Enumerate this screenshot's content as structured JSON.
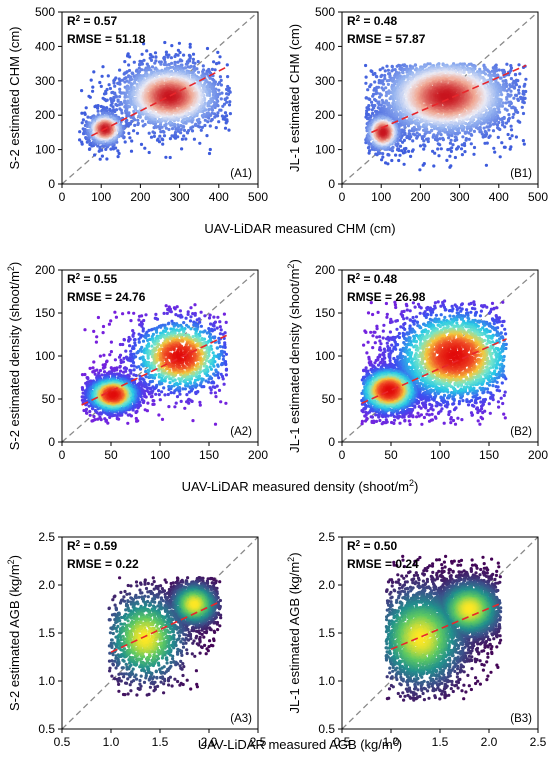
{
  "chart_data": [
    {
      "type": "scatter",
      "panel": "(A1)",
      "xlabel": "",
      "ylabel": "S-2 estimated CHM (cm)",
      "xlim": [
        0,
        500
      ],
      "ylim": [
        0,
        500
      ],
      "xticks": [
        0,
        100,
        200,
        300,
        400,
        500
      ],
      "yticks": [
        0,
        100,
        200,
        300,
        400,
        500
      ],
      "stats": {
        "r2_prefix": "R",
        "r2_sup": "2",
        "r2_value": " = 0.57",
        "rmse": "RMSE = 51.18"
      },
      "fit": {
        "x": [
          75,
          420
        ],
        "y": [
          140,
          340
        ]
      },
      "cloud": {
        "clusters": [
          {
            "x": 110,
            "y": 160,
            "sx": 22,
            "sy": 22,
            "n": 700
          },
          {
            "x": 275,
            "y": 255,
            "sx": 60,
            "sy": 45,
            "n": 2300
          }
        ],
        "xmin": 40,
        "xmax": 430,
        "ymin": 40,
        "ymax": 420
      },
      "palette": "coolwarm",
      "grid": false
    },
    {
      "type": "scatter",
      "panel": "(B1)",
      "xlabel": "",
      "ylabel": "JL-1 estimated CHM (cm)",
      "xlim": [
        0,
        500
      ],
      "ylim": [
        0,
        500
      ],
      "xticks": [
        0,
        100,
        200,
        300,
        400,
        500
      ],
      "yticks": [
        0,
        100,
        200,
        300,
        400,
        500
      ],
      "stats": {
        "r2_prefix": "R",
        "r2_sup": "2",
        "r2_value": " = 0.48",
        "rmse": "RMSE = 57.87"
      },
      "fit": {
        "x": [
          75,
          470
        ],
        "y": [
          150,
          345
        ]
      },
      "cloud": {
        "clusters": [
          {
            "x": 105,
            "y": 150,
            "sx": 20,
            "sy": 25,
            "n": 900
          },
          {
            "x": 265,
            "y": 255,
            "sx": 80,
            "sy": 55,
            "n": 3600
          }
        ],
        "xmin": 60,
        "xmax": 470,
        "ymin": 40,
        "ymax": 350
      },
      "palette": "coolwarm",
      "grid": false
    },
    {
      "type": "scatter",
      "panel": "(A2)",
      "xlabel": "",
      "ylabel": "S-2 estimated density (shoot/m²)",
      "xlim": [
        0,
        200
      ],
      "ylim": [
        0,
        200
      ],
      "xticks": [
        0,
        50,
        100,
        150,
        200
      ],
      "yticks": [
        0,
        50,
        100,
        150,
        200
      ],
      "stats": {
        "r2_prefix": "R",
        "r2_sup": "2",
        "r2_value": " = 0.55",
        "rmse": "RMSE = 24.76"
      },
      "fit": {
        "x": [
          20,
          168
        ],
        "y": [
          43,
          124
        ]
      },
      "cloud": {
        "clusters": [
          {
            "x": 52,
            "y": 55,
            "sx": 14,
            "sy": 11,
            "n": 1500
          },
          {
            "x": 120,
            "y": 100,
            "sx": 25,
            "sy": 22,
            "n": 1300
          }
        ],
        "xmin": 20,
        "xmax": 168,
        "ymin": 20,
        "ymax": 160
      },
      "palette": "rainbow",
      "grid": false
    },
    {
      "type": "scatter",
      "panel": "(B2)",
      "xlabel": "",
      "ylabel": "JL-1 estimated density (shoot/m²)",
      "xlim": [
        0,
        200
      ],
      "ylim": [
        0,
        200
      ],
      "xticks": [
        0,
        50,
        100,
        150,
        200
      ],
      "yticks": [
        0,
        50,
        100,
        150,
        200
      ],
      "stats": {
        "r2_prefix": "R",
        "r2_sup": "2",
        "r2_value": " = 0.48",
        "rmse": "RMSE = 26.98"
      },
      "fit": {
        "x": [
          20,
          168
        ],
        "y": [
          45,
          120
        ]
      },
      "cloud": {
        "clusters": [
          {
            "x": 48,
            "y": 60,
            "sx": 16,
            "sy": 14,
            "n": 1900
          },
          {
            "x": 115,
            "y": 100,
            "sx": 32,
            "sy": 28,
            "n": 2600
          }
        ],
        "xmin": 20,
        "xmax": 168,
        "ymin": 20,
        "ymax": 165
      },
      "palette": "rainbow",
      "grid": false
    },
    {
      "type": "scatter",
      "panel": "(A3)",
      "xlabel": "",
      "ylabel": "S-2 estimated AGB (kg/m²)",
      "xlim": [
        0.5,
        2.5
      ],
      "ylim": [
        0.5,
        2.5
      ],
      "xticks": [
        0.5,
        1.0,
        1.5,
        2.0,
        2.5
      ],
      "yticks": [
        0.5,
        1.0,
        1.5,
        2.0,
        2.5
      ],
      "tick_decimals": 1,
      "stats": {
        "r2_prefix": "R",
        "r2_sup": "2",
        "r2_value": " = 0.59",
        "rmse": "RMSE = 0.22"
      },
      "fit": {
        "x": [
          1.0,
          2.1
        ],
        "y": [
          1.3,
          1.82
        ]
      },
      "cloud": {
        "clusters": [
          {
            "x": 1.85,
            "y": 1.8,
            "sx": 0.13,
            "sy": 0.12,
            "n": 1500
          },
          {
            "x": 1.35,
            "y": 1.45,
            "sx": 0.22,
            "sy": 0.25,
            "n": 1300
          }
        ],
        "xmin": 0.98,
        "xmax": 2.12,
        "ymin": 0.85,
        "ymax": 2.08
      },
      "palette": "viridis",
      "grid": false
    },
    {
      "type": "scatter",
      "panel": "(B3)",
      "xlabel": "",
      "ylabel": "JL-1 estimated AGB (kg/m²)",
      "xlim": [
        0.5,
        2.5
      ],
      "ylim": [
        0.5,
        2.5
      ],
      "xticks": [
        0.5,
        1.0,
        1.5,
        2.0,
        2.5
      ],
      "yticks": [
        0.5,
        1.0,
        1.5,
        2.0,
        2.5
      ],
      "tick_decimals": 1,
      "stats": {
        "r2_prefix": "R",
        "r2_sup": "2",
        "r2_value": " = 0.50",
        "rmse": "RMSE = 0.24"
      },
      "fit": {
        "x": [
          1.0,
          2.1
        ],
        "y": [
          1.33,
          1.8
        ]
      },
      "cloud": {
        "clusters": [
          {
            "x": 1.8,
            "y": 1.75,
            "sx": 0.18,
            "sy": 0.16,
            "n": 2500
          },
          {
            "x": 1.3,
            "y": 1.45,
            "sx": 0.25,
            "sy": 0.28,
            "n": 2700
          }
        ],
        "xmin": 0.95,
        "xmax": 2.12,
        "ymin": 0.8,
        "ymax": 2.3
      },
      "palette": "viridis",
      "grid": false
    }
  ],
  "row_xlabels": [
    {
      "text": "UAV-LiDAR measured CHM (cm)",
      "pre": "UAV-LiDAR measured CHM (cm)",
      "sup": "",
      "post": ""
    },
    {
      "text": "UAV-LiDAR measured density (shoot/m²)",
      "pre": "UAV-LiDAR measured density (shoot/m",
      "sup": "2",
      "post": ")"
    },
    {
      "text": "UAV-LiDAR measured AGB (kg/m²)",
      "pre": "UAV-LiDAR measured AGB (kg/m",
      "sup": "2",
      "post": ")"
    }
  ],
  "colors": {
    "fit_line": "#e8262b",
    "identity_line": "#8a8a8a"
  }
}
